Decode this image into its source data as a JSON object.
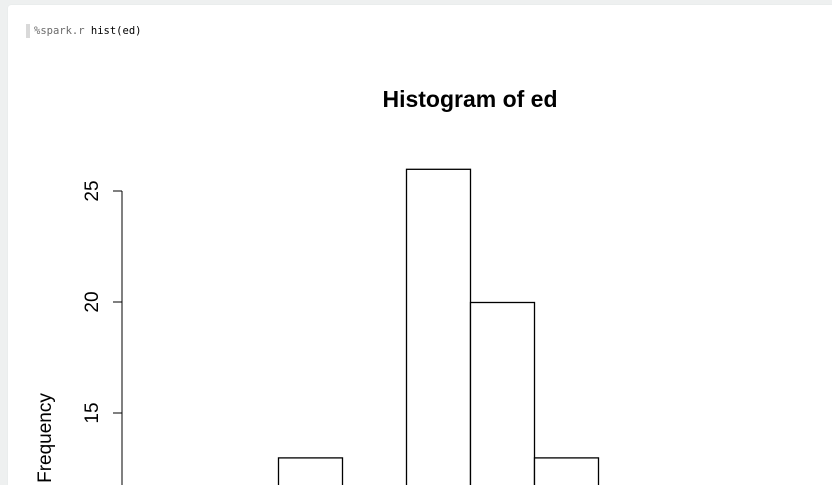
{
  "paragraph": {
    "code_magic": "%spark.r",
    "code_body": " hist(ed)"
  },
  "chart_data": {
    "type": "bar",
    "title": "Histogram of ed",
    "ylabel": "Frequency",
    "xlabel": "",
    "yticks": [
      15,
      20,
      25
    ],
    "ytick_labels": [
      "15",
      "20",
      "25"
    ],
    "visible_bars": [
      {
        "value": 13
      },
      {
        "value": null
      },
      {
        "value": 26
      },
      {
        "value": 20
      },
      {
        "value": 13
      }
    ],
    "bar_fill": "#ffffff",
    "bar_stroke": "#000000",
    "grid": false
  }
}
